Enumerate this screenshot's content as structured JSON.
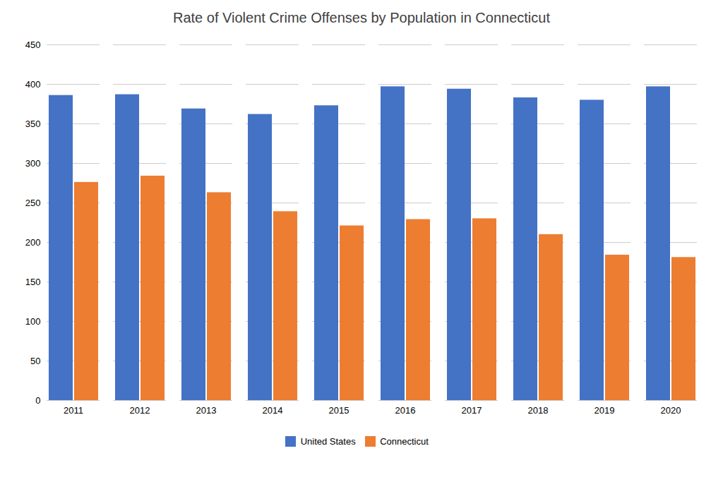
{
  "chart_data": {
    "type": "bar",
    "title": "Rate of Violent Crime Offenses by Population in Connecticut",
    "categories": [
      "2011",
      "2012",
      "2013",
      "2014",
      "2015",
      "2016",
      "2017",
      "2018",
      "2019",
      "2020"
    ],
    "series": [
      {
        "name": "United States",
        "color": "#4472C4",
        "values": [
          386,
          387,
          369,
          362,
          373,
          397,
          394,
          383,
          380,
          397
        ]
      },
      {
        "name": "Connecticut",
        "color": "#ED7D31",
        "values": [
          276,
          284,
          263,
          239,
          221,
          229,
          230,
          210,
          184,
          181
        ]
      }
    ],
    "ylim": [
      0,
      450
    ],
    "yticks": [
      0,
      50,
      100,
      150,
      200,
      250,
      300,
      350,
      400,
      450
    ],
    "grid": true,
    "legend": "bottom"
  }
}
